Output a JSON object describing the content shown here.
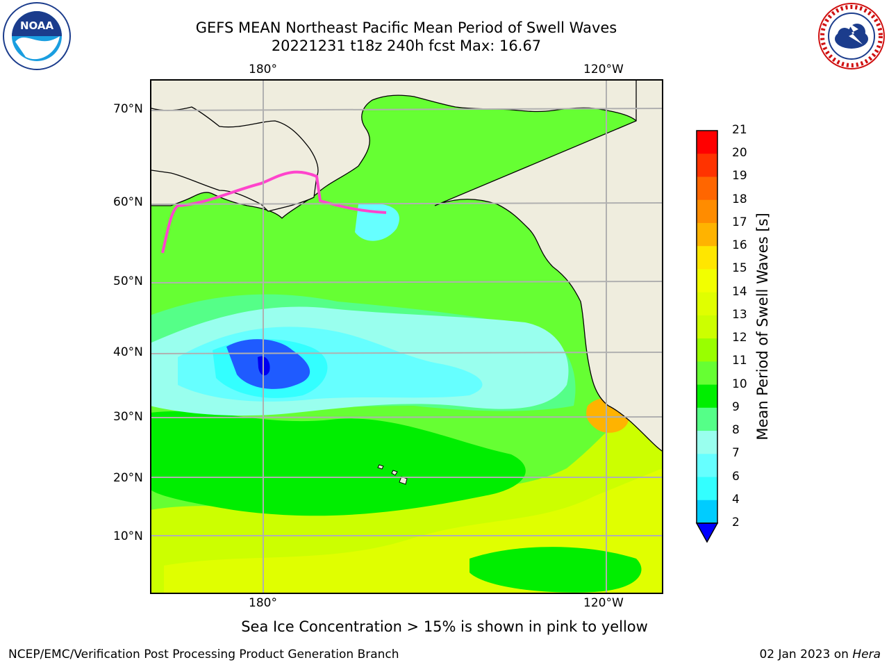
{
  "title_line1": "GEFS MEAN Northeast Pacific Mean Period of Swell Waves",
  "title_line2": "20221231 t18z 240h fcst   Max: 16.67",
  "map": {
    "top_lon_labels": [
      "180°",
      "120°W"
    ],
    "bottom_lon_labels": [
      "180°",
      "120°W"
    ],
    "lat_labels": [
      "70°N",
      "60°N",
      "50°N",
      "40°N",
      "30°N",
      "20°N",
      "10°N"
    ],
    "gridlines": true,
    "land_color": "#efedde",
    "ocean_background": "#66ff33"
  },
  "colorbar": {
    "label": "Mean Period of Swell Waves [s]",
    "ticks": [
      "21",
      "20",
      "19",
      "18",
      "17",
      "16",
      "15",
      "14",
      "13",
      "12",
      "11",
      "10",
      "9",
      "8",
      "7",
      "6",
      "4",
      "2"
    ],
    "colors": [
      "#ff0000",
      "#ff3300",
      "#ff6600",
      "#ff8c00",
      "#ffb300",
      "#ffe600",
      "#f2ff00",
      "#e0ff00",
      "#ccff00",
      "#99ff00",
      "#66ff33",
      "#00ee00",
      "#55ff88",
      "#99ffee",
      "#66ffff",
      "#33ffff",
      "#00ccff",
      "#0066ff"
    ],
    "extend_min_color": "#0000ff"
  },
  "sea_ice_note": "Sea Ice Concentration > 15% is shown in pink to yellow",
  "footer_left": "NCEP/EMC/Verification Post Processing Product Generation Branch",
  "footer_date": "02 Jan 2023 on",
  "footer_host": "Hera",
  "logos": {
    "left": "NOAA",
    "right": "NATIONAL WEATHER SERVICE"
  }
}
